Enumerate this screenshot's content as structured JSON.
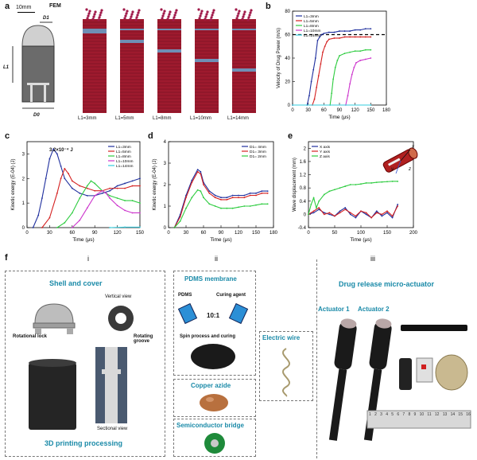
{
  "panels": {
    "a": {
      "label": "a",
      "scale_bar": "10mm",
      "fem_label": "FEM",
      "dim_d1": "D1",
      "dim_l1": "L1",
      "dim_d0": "D0",
      "captions": [
        "L1=3mm",
        "L1=5mm",
        "L1=8mm",
        "L1=10mm",
        "L1=14mm"
      ]
    },
    "b": {
      "label": "b"
    },
    "c": {
      "label": "c",
      "annotation": "3.2×10⁻⁴ J"
    },
    "d": {
      "label": "d"
    },
    "e": {
      "label": "e",
      "axes_x": "x",
      "axes_y": "y",
      "axes_z": "z"
    },
    "f": {
      "label": "f",
      "sections": [
        "i",
        "ii",
        "iii"
      ],
      "i": {
        "title": "Shell and cover",
        "vertical_view": "Vertical view",
        "rotational_lock": "Rotational lock",
        "rotating_groove": "Rotating groove",
        "sectional_view": "Sectional view",
        "footer": "3D printing processing"
      },
      "ii": {
        "pdms_title": "PDMS membrane",
        "pdms": "PDMS",
        "curing_agent": "Curing agent",
        "ratio": "10:1",
        "spin": "Spin process and curing",
        "electric_wire": "Electric wire",
        "copper_azide": "Copper azide",
        "semiconductor": "Semiconductor bridge"
      },
      "iii": {
        "title": "Drug release micro-actuator",
        "actuator1": "Actuator 1",
        "actuator2": "Actuator 2",
        "ruler_ticks": [
          "1",
          "2",
          "3",
          "4",
          "5",
          "6",
          "7",
          "8",
          "9",
          "10",
          "11",
          "12",
          "13",
          "14",
          "15",
          "16"
        ]
      }
    }
  },
  "chart_data": [
    {
      "type": "line",
      "panel": "b",
      "xlabel": "Time (μs)",
      "ylabel": "Velocity of Drug Power (m/s)",
      "xlim": [
        0,
        180
      ],
      "ylim": [
        0,
        80
      ],
      "xticks": [
        0,
        30,
        60,
        90,
        120,
        150,
        180
      ],
      "yticks": [
        0,
        20,
        40,
        60,
        80
      ],
      "reference_line": 60,
      "legend_position": "top-left",
      "series": [
        {
          "name": "L1=3mm",
          "color": "#1f2f9e",
          "x": [
            0,
            28,
            32,
            36,
            40,
            44,
            48,
            52,
            56,
            60,
            70,
            80,
            90,
            100,
            110,
            120,
            130,
            140,
            150
          ],
          "y": [
            0,
            0,
            8,
            20,
            30,
            40,
            55,
            58,
            60,
            61,
            62,
            62,
            63,
            63,
            63,
            64,
            64,
            65,
            65
          ]
        },
        {
          "name": "L1=5mm",
          "color": "#d42020",
          "x": [
            0,
            38,
            42,
            46,
            50,
            54,
            58,
            62,
            66,
            70,
            80,
            90,
            100,
            110,
            120,
            130,
            140,
            150
          ],
          "y": [
            0,
            0,
            5,
            15,
            25,
            35,
            45,
            50,
            54,
            56,
            57,
            57,
            58,
            58,
            58,
            58,
            58,
            58
          ]
        },
        {
          "name": "L1=8mm",
          "color": "#2ecc40",
          "x": [
            0,
            72,
            75,
            78,
            82,
            86,
            90,
            100,
            110,
            120,
            130,
            140,
            150
          ],
          "y": [
            0,
            0,
            10,
            22,
            32,
            38,
            42,
            44,
            45,
            46,
            46,
            47,
            47
          ]
        },
        {
          "name": "L1=10mm",
          "color": "#cc33cc",
          "x": [
            0,
            102,
            106,
            110,
            114,
            118,
            122,
            130,
            140,
            150
          ],
          "y": [
            0,
            0,
            8,
            18,
            26,
            32,
            36,
            38,
            39,
            40
          ]
        },
        {
          "name": "L1=14mm",
          "color": "#33ccdd",
          "x": [
            0,
            150
          ],
          "y": [
            0,
            0
          ]
        }
      ]
    },
    {
      "type": "line",
      "panel": "c",
      "xlabel": "Time (μs)",
      "ylabel": "Kinetic energy (E-04) (J)",
      "xlim": [
        0,
        150
      ],
      "ylim": [
        0,
        3.5
      ],
      "xticks": [
        0,
        30,
        60,
        90,
        120,
        150
      ],
      "yticks": [
        0,
        1,
        2,
        3
      ],
      "legend_position": "top-right",
      "series": [
        {
          "name": "L1=3mm",
          "color": "#1f2f9e",
          "x": [
            8,
            15,
            20,
            25,
            30,
            35,
            40,
            45,
            50,
            60,
            70,
            80,
            90,
            100,
            110,
            120,
            130,
            140,
            150
          ],
          "y": [
            0,
            0.5,
            1.2,
            2.0,
            2.8,
            3.2,
            3.0,
            2.5,
            2.0,
            1.6,
            1.4,
            1.3,
            1.3,
            1.4,
            1.5,
            1.7,
            1.8,
            1.9,
            2.0
          ]
        },
        {
          "name": "L1=5mm",
          "color": "#d42020",
          "x": [
            20,
            30,
            40,
            45,
            50,
            55,
            60,
            70,
            80,
            90,
            100,
            110,
            120,
            130,
            140,
            150
          ],
          "y": [
            0,
            0.4,
            1.4,
            2.0,
            2.4,
            2.2,
            1.9,
            1.7,
            1.6,
            1.5,
            1.5,
            1.6,
            1.6,
            1.6,
            1.7,
            1.7
          ]
        },
        {
          "name": "L1=8mm",
          "color": "#2ecc40",
          "x": [
            40,
            50,
            60,
            70,
            80,
            85,
            90,
            100,
            110,
            120,
            130,
            140,
            150
          ],
          "y": [
            0,
            0.2,
            0.6,
            1.2,
            1.7,
            1.9,
            1.8,
            1.5,
            1.3,
            1.2,
            1.1,
            1.1,
            1.0
          ]
        },
        {
          "name": "L1=10mm",
          "color": "#cc33cc",
          "x": [
            60,
            70,
            80,
            90,
            100,
            105,
            110,
            120,
            130,
            140,
            150
          ],
          "y": [
            0,
            0.3,
            0.8,
            1.3,
            1.5,
            1.4,
            1.2,
            0.9,
            0.7,
            0.6,
            0.6
          ]
        },
        {
          "name": "L1=14mm",
          "color": "#33ccdd",
          "x": [
            110,
            130,
            150
          ],
          "y": [
            0,
            0.02,
            0.02
          ]
        }
      ]
    },
    {
      "type": "line",
      "panel": "d",
      "xlabel": "Time (μs)",
      "ylabel": "Kinetic energy (E-04) (J)",
      "xlim": [
        0,
        180
      ],
      "ylim": [
        0,
        4.0
      ],
      "xticks": [
        0,
        30,
        60,
        90,
        120,
        150,
        180
      ],
      "yticks": [
        0.0,
        1.0,
        2.0,
        3.0,
        4.0
      ],
      "legend_position": "top-right",
      "series": [
        {
          "name": "D1= 4mm",
          "color": "#1f2f9e",
          "x": [
            10,
            20,
            30,
            40,
            50,
            55,
            60,
            70,
            80,
            90,
            100,
            110,
            120,
            130,
            140,
            150,
            160,
            170
          ],
          "y": [
            0,
            0.6,
            1.5,
            2.2,
            2.7,
            2.6,
            2.1,
            1.7,
            1.5,
            1.4,
            1.4,
            1.5,
            1.5,
            1.5,
            1.6,
            1.6,
            1.7,
            1.7
          ]
        },
        {
          "name": "D1= 3mm",
          "color": "#d42020",
          "x": [
            10,
            20,
            30,
            40,
            50,
            55,
            60,
            70,
            80,
            90,
            100,
            110,
            120,
            130,
            140,
            150,
            160,
            170
          ],
          "y": [
            0,
            0.5,
            1.4,
            2.1,
            2.6,
            2.5,
            2.0,
            1.6,
            1.4,
            1.3,
            1.3,
            1.4,
            1.4,
            1.4,
            1.5,
            1.5,
            1.6,
            1.6
          ]
        },
        {
          "name": "D1= 2mm",
          "color": "#2ecc40",
          "x": [
            10,
            20,
            30,
            40,
            50,
            55,
            60,
            70,
            80,
            90,
            100,
            110,
            120,
            130,
            140,
            150,
            160,
            170
          ],
          "y": [
            0,
            0.3,
            0.9,
            1.4,
            1.75,
            1.7,
            1.4,
            1.1,
            1.0,
            0.9,
            0.9,
            0.9,
            0.95,
            1.0,
            1.0,
            1.05,
            1.1,
            1.1
          ]
        }
      ]
    },
    {
      "type": "line",
      "panel": "e",
      "xlabel": "Time (μs)",
      "ylabel": "Wave displacement (mm)",
      "xlim": [
        0,
        200
      ],
      "ylim": [
        -0.4,
        2.2
      ],
      "xticks": [
        0,
        50,
        100,
        150,
        200
      ],
      "yticks": [
        -0.4,
        0.0,
        0.4,
        0.8,
        1.2,
        1.6,
        2.0
      ],
      "legend_position": "top-left",
      "series": [
        {
          "name": "X axis",
          "color": "#1f2f9e",
          "x": [
            0,
            10,
            20,
            30,
            40,
            50,
            60,
            70,
            80,
            90,
            100,
            110,
            120,
            130,
            140,
            150,
            160,
            170
          ],
          "y": [
            0,
            0.05,
            0.15,
            0.05,
            0.0,
            -0.05,
            0.1,
            0.2,
            0.0,
            -0.1,
            0.1,
            0.0,
            -0.1,
            0.1,
            -0.05,
            0.05,
            -0.1,
            0.3
          ]
        },
        {
          "name": "Y axis",
          "color": "#d42020",
          "x": [
            0,
            10,
            20,
            30,
            40,
            50,
            60,
            70,
            80,
            90,
            100,
            110,
            120,
            130,
            140,
            150,
            160,
            170
          ],
          "y": [
            0,
            0.1,
            0.2,
            0.0,
            0.05,
            -0.05,
            0.05,
            0.15,
            0.05,
            -0.05,
            0.1,
            0.05,
            -0.1,
            0.05,
            0.0,
            0.1,
            -0.05,
            0.25
          ]
        },
        {
          "name": "Z axis",
          "color": "#2ecc40",
          "x": [
            0,
            5,
            10,
            15,
            20,
            30,
            40,
            50,
            60,
            70,
            80,
            90,
            100,
            110,
            120,
            130,
            140,
            150,
            160,
            170
          ],
          "y": [
            0,
            0.3,
            0.5,
            0.2,
            0.4,
            0.6,
            0.7,
            0.75,
            0.8,
            0.85,
            0.9,
            0.9,
            0.92,
            0.95,
            0.95,
            0.97,
            0.98,
            0.99,
            1.0,
            1.0
          ]
        }
      ]
    }
  ]
}
